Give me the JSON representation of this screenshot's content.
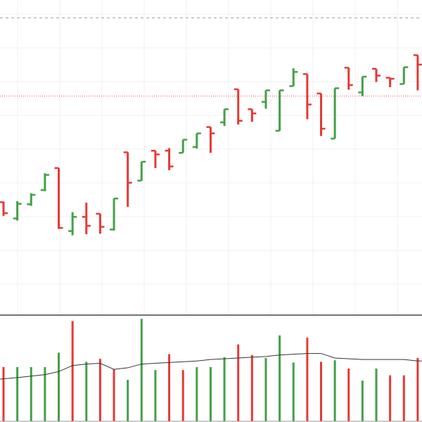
{
  "chart_data": [
    {
      "type": "ohlc",
      "title": "",
      "xlabel": "",
      "ylabel": "",
      "grid": true,
      "ylim": [
        0,
        600
      ],
      "colors": {
        "up": "#43a047",
        "down": "#e53935"
      },
      "reference_lines": [
        {
          "kind": "dashed",
          "value": 566,
          "color": "#9e9e9e"
        },
        {
          "kind": "dotted",
          "value": 417,
          "color": "#ef5350"
        }
      ],
      "bars": [
        {
          "open": 215,
          "high": 216,
          "low": 189,
          "close": 194
        },
        {
          "open": 184,
          "high": 217,
          "low": 180,
          "close": 212
        },
        {
          "open": 211,
          "high": 232,
          "low": 208,
          "close": 229
        },
        {
          "open": 238,
          "high": 270,
          "low": 236,
          "close": 267
        },
        {
          "open": 280,
          "high": 280,
          "low": 164,
          "close": 166
        },
        {
          "open": 160,
          "high": 196,
          "low": 152,
          "close": 187
        },
        {
          "open": 187,
          "high": 214,
          "low": 154,
          "close": 170
        },
        {
          "open": 193,
          "high": 193,
          "low": 155,
          "close": 168
        },
        {
          "open": 163,
          "high": 222,
          "low": 161,
          "close": 222
        },
        {
          "open": 310,
          "high": 310,
          "low": 206,
          "close": 252
        },
        {
          "open": 256,
          "high": 292,
          "low": 256,
          "close": 292
        },
        {
          "open": 313,
          "high": 313,
          "low": 280,
          "close": 306
        },
        {
          "open": 313,
          "high": 318,
          "low": 276,
          "close": 283
        },
        {
          "open": 309,
          "high": 334,
          "low": 309,
          "close": 334
        },
        {
          "open": 320,
          "high": 346,
          "low": 317,
          "close": 346
        },
        {
          "open": 358,
          "high": 358,
          "low": 309,
          "close": 346
        },
        {
          "open": 367,
          "high": 392,
          "low": 360,
          "close": 392
        },
        {
          "open": 430,
          "high": 430,
          "low": 363,
          "close": 370
        },
        {
          "open": 392,
          "high": 392,
          "low": 368,
          "close": 384
        },
        {
          "open": 406,
          "high": 428,
          "low": 393,
          "close": 428
        },
        {
          "open": 351,
          "high": 428,
          "low": 351,
          "close": 428
        },
        {
          "open": 436,
          "high": 470,
          "low": 436,
          "close": 463
        },
        {
          "open": 459,
          "high": 459,
          "low": 373,
          "close": 401
        },
        {
          "open": 422,
          "high": 422,
          "low": 341,
          "close": 355
        },
        {
          "open": 336,
          "high": 432,
          "low": 336,
          "close": 432
        },
        {
          "open": 471,
          "high": 471,
          "low": 429,
          "close": 438
        },
        {
          "open": 424,
          "high": 454,
          "low": 417,
          "close": 454
        },
        {
          "open": 469,
          "high": 469,
          "low": 444,
          "close": 456
        },
        {
          "open": 452,
          "high": 452,
          "low": 434,
          "close": 450
        },
        {
          "open": 440,
          "high": 472,
          "low": 440,
          "close": 472
        },
        {
          "open": 495,
          "high": 495,
          "low": 428,
          "close": 477
        }
      ]
    },
    {
      "type": "bar",
      "title": "",
      "xlabel": "",
      "ylabel": "",
      "grid": false,
      "ylim": [
        0,
        140
      ],
      "volume": [
        72,
        72,
        72,
        72,
        91,
        133,
        79,
        83,
        69,
        55,
        136,
        68,
        89,
        68,
        72,
        72,
        85,
        102,
        88,
        84,
        114,
        78,
        111,
        79,
        81,
        70,
        54,
        70,
        61,
        61,
        84
      ],
      "directions": [
        "down",
        "up",
        "up",
        "up",
        "up",
        "down",
        "up",
        "down",
        "down",
        "up",
        "up",
        "up",
        "down",
        "down",
        "up",
        "up",
        "up",
        "down",
        "down",
        "up",
        "up",
        "up",
        "down",
        "down",
        "up",
        "down",
        "up",
        "up",
        "down",
        "down",
        "down"
      ],
      "moving_average": [
        56,
        58,
        60,
        62,
        66,
        74,
        76,
        77,
        69,
        71,
        76,
        77,
        78,
        79,
        80,
        82,
        83,
        84,
        85,
        86,
        88,
        89,
        90,
        90,
        84,
        83,
        82,
        82,
        82,
        82,
        80
      ]
    }
  ]
}
